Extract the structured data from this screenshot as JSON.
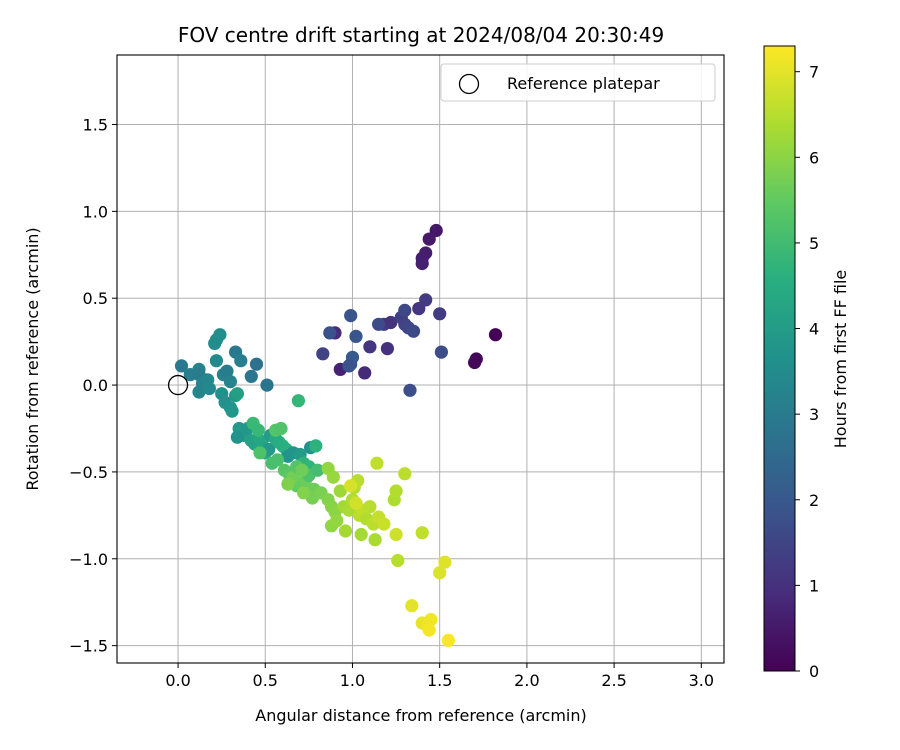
{
  "chart_data": {
    "type": "scatter",
    "title": "FOV centre drift starting at 2024/08/04 20:30:49",
    "xlabel": "Angular distance from reference (arcmin)",
    "ylabel": "Rotation from reference (arcmin)",
    "xlim": [
      -0.35,
      3.13
    ],
    "ylim": [
      -1.6,
      1.9
    ],
    "x_ticks": [
      0.0,
      0.5,
      1.0,
      1.5,
      2.0,
      2.5,
      3.0
    ],
    "x_tick_labels": [
      "0.0",
      "0.5",
      "1.0",
      "1.5",
      "2.0",
      "2.5",
      "3.0"
    ],
    "y_ticks": [
      -1.5,
      -1.0,
      -0.5,
      0.0,
      0.5,
      1.0,
      1.5
    ],
    "y_tick_labels": [
      "−1.5",
      "−1.0",
      "−0.5",
      "0.0",
      "0.5",
      "1.0",
      "1.5"
    ],
    "grid": true,
    "legend": {
      "position": "top-right",
      "entries": [
        "Reference platepar"
      ]
    },
    "colorbar": {
      "label": "Hours from first FF file",
      "range": [
        0,
        7.3
      ],
      "ticks": [
        0,
        1,
        2,
        3,
        4,
        5,
        6,
        7
      ],
      "tick_labels": [
        "0",
        "1",
        "2",
        "3",
        "4",
        "5",
        "6",
        "7"
      ],
      "colormap": "viridis"
    },
    "reference": {
      "x": 0.0,
      "y": 0.0
    },
    "points": [
      [
        1.48,
        0.89,
        0.45
      ],
      [
        1.44,
        0.84,
        0.5
      ],
      [
        1.42,
        0.76,
        0.55
      ],
      [
        1.4,
        0.73,
        0.6
      ],
      [
        1.4,
        0.7,
        0.65
      ],
      [
        1.82,
        0.29,
        0.05
      ],
      [
        1.71,
        0.15,
        0.1
      ],
      [
        1.7,
        0.13,
        0.15
      ],
      [
        0.9,
        0.3,
        0.9
      ],
      [
        0.93,
        0.09,
        0.7
      ],
      [
        1.07,
        0.07,
        0.85
      ],
      [
        1.18,
        0.35,
        1.2
      ],
      [
        1.2,
        0.21,
        1.0
      ],
      [
        1.22,
        0.36,
        1.05
      ],
      [
        1.28,
        0.39,
        1.35
      ],
      [
        1.3,
        0.35,
        1.4
      ],
      [
        1.32,
        0.33,
        1.5
      ],
      [
        1.35,
        0.31,
        1.6
      ],
      [
        1.38,
        0.44,
        1.15
      ],
      [
        1.42,
        0.49,
        1.25
      ],
      [
        1.5,
        0.41,
        1.3
      ],
      [
        1.51,
        0.19,
        1.7
      ],
      [
        1.33,
        -0.03,
        1.75
      ],
      [
        1.3,
        0.43,
        1.55
      ],
      [
        1.1,
        0.22,
        1.1
      ],
      [
        0.83,
        0.18,
        1.45
      ],
      [
        0.87,
        0.3,
        1.8
      ],
      [
        0.99,
        0.4,
        1.9
      ],
      [
        1.02,
        0.28,
        1.95
      ],
      [
        0.99,
        0.12,
        2.0
      ],
      [
        1.0,
        0.16,
        2.05
      ],
      [
        1.15,
        0.35,
        1.65
      ],
      [
        0.98,
        0.11,
        1.85
      ],
      [
        0.02,
        0.11,
        2.9
      ],
      [
        0.07,
        0.06,
        3.1
      ],
      [
        0.12,
        0.09,
        3.2
      ],
      [
        0.12,
        0.06,
        3.0
      ],
      [
        0.12,
        -0.04,
        3.3
      ],
      [
        0.14,
        0.01,
        3.25
      ],
      [
        0.17,
        0.03,
        3.35
      ],
      [
        0.18,
        -0.02,
        3.4
      ],
      [
        0.21,
        0.24,
        3.5
      ],
      [
        0.22,
        0.26,
        3.55
      ],
      [
        0.24,
        0.29,
        3.6
      ],
      [
        0.22,
        0.14,
        3.45
      ],
      [
        0.26,
        0.06,
        3.15
      ],
      [
        0.28,
        0.08,
        3.05
      ],
      [
        0.3,
        0.02,
        3.2
      ],
      [
        0.25,
        -0.05,
        3.65
      ],
      [
        0.27,
        -0.1,
        3.7
      ],
      [
        0.3,
        -0.13,
        3.75
      ],
      [
        0.31,
        -0.15,
        3.8
      ],
      [
        0.33,
        -0.06,
        3.85
      ],
      [
        0.34,
        -0.05,
        4.1
      ],
      [
        0.33,
        0.19,
        2.95
      ],
      [
        0.36,
        0.14,
        3.1
      ],
      [
        0.42,
        0.05,
        2.85
      ],
      [
        0.45,
        0.12,
        2.7
      ],
      [
        0.51,
        0.0,
        2.8
      ],
      [
        0.35,
        -0.25,
        3.9
      ],
      [
        0.37,
        -0.27,
        3.95
      ],
      [
        0.38,
        -0.29,
        4.0
      ],
      [
        0.4,
        -0.25,
        3.85
      ],
      [
        0.34,
        -0.3,
        3.7
      ],
      [
        0.42,
        -0.32,
        4.15
      ],
      [
        0.44,
        -0.34,
        4.2
      ],
      [
        0.46,
        -0.31,
        4.25
      ],
      [
        0.48,
        -0.33,
        4.3
      ],
      [
        0.49,
        -0.36,
        4.35
      ],
      [
        0.5,
        -0.39,
        4.4
      ],
      [
        0.52,
        -0.37,
        3.9
      ],
      [
        0.53,
        -0.29,
        4.0
      ],
      [
        0.56,
        -0.31,
        4.45
      ],
      [
        0.58,
        -0.33,
        4.5
      ],
      [
        0.6,
        -0.35,
        4.55
      ],
      [
        0.62,
        -0.37,
        4.6
      ],
      [
        0.63,
        -0.41,
        3.75
      ],
      [
        0.66,
        -0.39,
        3.8
      ],
      [
        0.7,
        -0.4,
        3.95
      ],
      [
        0.72,
        -0.45,
        4.7
      ],
      [
        0.75,
        -0.47,
        4.75
      ],
      [
        0.76,
        -0.36,
        3.7
      ],
      [
        0.79,
        -0.35,
        4.65
      ],
      [
        0.69,
        -0.09,
        4.8
      ],
      [
        0.43,
        -0.22,
        4.9
      ],
      [
        0.46,
        -0.26,
        4.85
      ],
      [
        0.47,
        -0.39,
        5.2
      ],
      [
        0.56,
        -0.26,
        5.3
      ],
      [
        0.59,
        -0.25,
        5.25
      ],
      [
        0.54,
        -0.45,
        5.1
      ],
      [
        0.57,
        -0.43,
        5.15
      ],
      [
        0.61,
        -0.49,
        5.35
      ],
      [
        0.64,
        -0.52,
        5.4
      ],
      [
        0.66,
        -0.55,
        5.45
      ],
      [
        0.68,
        -0.58,
        5.5
      ],
      [
        0.71,
        -0.57,
        5.55
      ],
      [
        0.73,
        -0.55,
        5.6
      ],
      [
        0.75,
        -0.52,
        5.2
      ],
      [
        0.78,
        -0.6,
        5.65
      ],
      [
        0.8,
        -0.49,
        5.05
      ],
      [
        0.77,
        -0.65,
        5.75
      ],
      [
        0.82,
        -0.62,
        5.8
      ],
      [
        0.86,
        -0.66,
        5.9
      ],
      [
        0.88,
        -0.7,
        5.95
      ],
      [
        0.9,
        -0.73,
        6.0
      ],
      [
        0.88,
        -0.81,
        6.05
      ],
      [
        0.91,
        -0.78,
        6.1
      ],
      [
        0.66,
        -0.53,
        5.7
      ],
      [
        0.63,
        -0.57,
        5.85
      ],
      [
        0.68,
        -0.47,
        5.3
      ],
      [
        0.71,
        -0.49,
        5.65
      ],
      [
        0.72,
        -0.62,
        5.9
      ],
      [
        0.86,
        -0.48,
        6.1
      ],
      [
        0.89,
        -0.53,
        6.15
      ],
      [
        0.93,
        -0.61,
        6.2
      ],
      [
        0.95,
        -0.7,
        6.25
      ],
      [
        0.96,
        -0.84,
        6.3
      ],
      [
        0.98,
        -0.72,
        6.35
      ],
      [
        1.0,
        -0.66,
        6.4
      ],
      [
        1.01,
        -0.59,
        6.45
      ],
      [
        1.03,
        -0.55,
        6.5
      ],
      [
        1.04,
        -0.75,
        6.55
      ],
      [
        1.06,
        -0.72,
        6.6
      ],
      [
        1.05,
        -0.86,
        6.3
      ],
      [
        1.08,
        -0.77,
        6.45
      ],
      [
        1.1,
        -0.7,
        6.5
      ],
      [
        1.12,
        -0.8,
        6.55
      ],
      [
        1.13,
        -0.89,
        6.35
      ],
      [
        1.14,
        -0.45,
        6.6
      ],
      [
        1.15,
        -0.76,
        6.65
      ],
      [
        1.18,
        -0.8,
        6.7
      ],
      [
        1.25,
        -0.86,
        6.75
      ],
      [
        1.24,
        -0.66,
        6.4
      ],
      [
        1.25,
        -0.61,
        6.45
      ],
      [
        1.26,
        -1.01,
        6.5
      ],
      [
        1.3,
        -0.51,
        6.55
      ],
      [
        1.4,
        -0.85,
        6.6
      ],
      [
        1.02,
        -0.68,
        6.8
      ],
      [
        0.99,
        -0.58,
        6.85
      ],
      [
        1.34,
        -1.27,
        7.0
      ],
      [
        1.4,
        -1.37,
        7.05
      ],
      [
        1.43,
        -1.39,
        7.1
      ],
      [
        1.45,
        -1.35,
        7.15
      ],
      [
        1.44,
        -1.41,
        7.2
      ],
      [
        1.5,
        -1.08,
        6.9
      ],
      [
        1.53,
        -1.02,
        6.95
      ],
      [
        1.55,
        -1.47,
        7.25
      ]
    ]
  }
}
